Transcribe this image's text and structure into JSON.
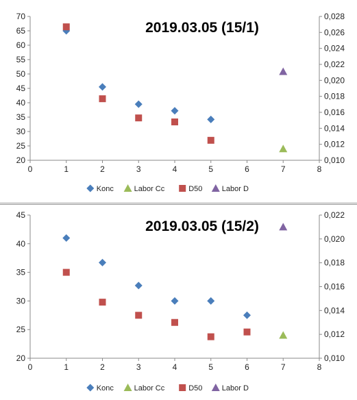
{
  "chart_data": [
    {
      "type": "scatter",
      "title": "2019.03.05 (15/1)",
      "xlim": [
        0,
        8
      ],
      "ylim": [
        20,
        70
      ],
      "y2lim": [
        0.01,
        0.028
      ],
      "x_ticks": [
        "0",
        "1",
        "2",
        "3",
        "4",
        "5",
        "6",
        "7",
        "8"
      ],
      "y_ticks": [
        "20",
        "25",
        "30",
        "35",
        "40",
        "45",
        "50",
        "55",
        "60",
        "65",
        "70"
      ],
      "y2_ticks": [
        "0,010",
        "0,012",
        "0,014",
        "0,016",
        "0,018",
        "0,020",
        "0,022",
        "0,024",
        "0,026",
        "0,028"
      ],
      "grid": false,
      "legend_position": "bottom",
      "series": [
        {
          "name": "Konc",
          "axis": "left",
          "marker": "diamond",
          "color": "#4a7ebb",
          "points": [
            [
              1,
              65
            ],
            [
              2,
              45.5
            ],
            [
              3,
              39.5
            ],
            [
              4,
              37.2
            ],
            [
              5,
              34.2
            ]
          ]
        },
        {
          "name": "Labor Cc",
          "axis": "left",
          "marker": "triangle",
          "color": "#9bbb59",
          "points": [
            [
              7,
              24
            ]
          ]
        },
        {
          "name": "D50",
          "axis": "right",
          "marker": "square",
          "color": "#c0504d",
          "points": [
            [
              1,
              0.0267
            ],
            [
              2,
              0.0177
            ],
            [
              3,
              0.0153
            ],
            [
              4,
              0.0148
            ],
            [
              5,
              0.0125
            ]
          ]
        },
        {
          "name": "Labor D",
          "axis": "right",
          "marker": "triangle",
          "color": "#8064a2",
          "points": [
            [
              7,
              0.0211
            ]
          ]
        }
      ]
    },
    {
      "type": "scatter",
      "title": "2019.03.05 (15/2)",
      "xlim": [
        0,
        8
      ],
      "ylim": [
        20,
        45
      ],
      "y2lim": [
        0.01,
        0.022
      ],
      "x_ticks": [
        "0",
        "1",
        "2",
        "3",
        "4",
        "5",
        "6",
        "7",
        "8"
      ],
      "y_ticks": [
        "20",
        "25",
        "30",
        "35",
        "40",
        "45"
      ],
      "y2_ticks": [
        "0,010",
        "0,012",
        "0,014",
        "0,016",
        "0,018",
        "0,020",
        "0,022"
      ],
      "grid": false,
      "legend_position": "bottom",
      "series": [
        {
          "name": "Konc",
          "axis": "left",
          "marker": "diamond",
          "color": "#4a7ebb",
          "points": [
            [
              1,
              41
            ],
            [
              2,
              36.7
            ],
            [
              3,
              32.7
            ],
            [
              4,
              30
            ],
            [
              5,
              30
            ],
            [
              6,
              27.5
            ]
          ]
        },
        {
          "name": "Labor Cc",
          "axis": "left",
          "marker": "triangle",
          "color": "#9bbb59",
          "points": [
            [
              7,
              24
            ]
          ]
        },
        {
          "name": "D50",
          "axis": "right",
          "marker": "square",
          "color": "#c0504d",
          "points": [
            [
              1,
              0.0172
            ],
            [
              2,
              0.0147
            ],
            [
              3,
              0.0136
            ],
            [
              4,
              0.013
            ],
            [
              5,
              0.0118
            ],
            [
              6,
              0.0122
            ]
          ]
        },
        {
          "name": "Labor D",
          "axis": "right",
          "marker": "triangle",
          "color": "#8064a2",
          "points": [
            [
              7,
              0.021
            ]
          ]
        }
      ]
    }
  ]
}
